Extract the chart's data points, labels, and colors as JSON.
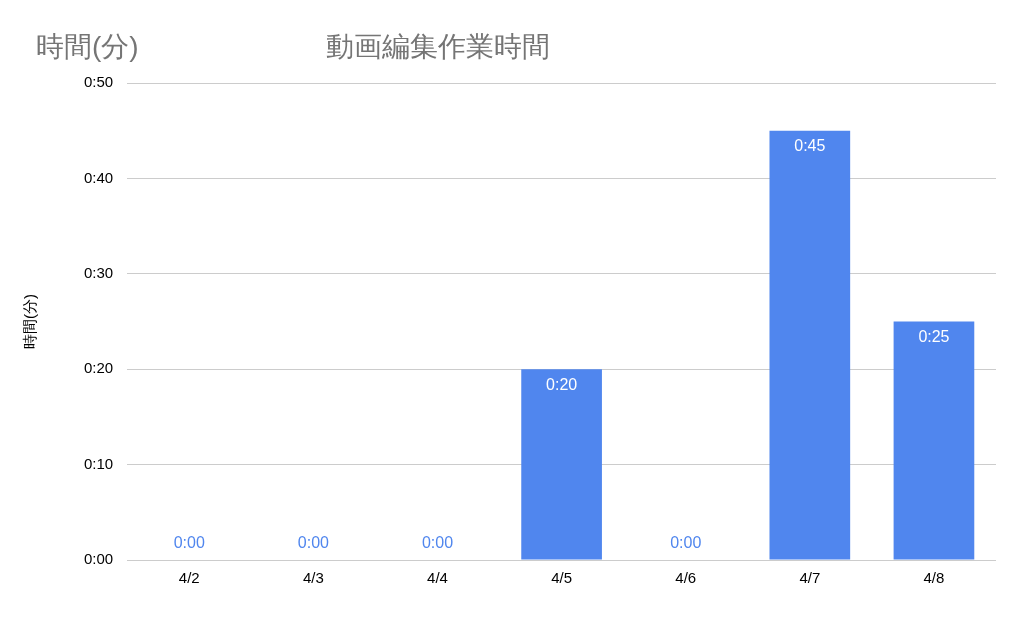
{
  "chart_data": {
    "type": "bar",
    "title": "動画編集作業時間",
    "ylabel": "時間(分)",
    "annotations": [
      "時間(分)"
    ],
    "categories": [
      "4/2",
      "4/3",
      "4/4",
      "4/5",
      "4/6",
      "4/7",
      "4/8"
    ],
    "values": [
      0,
      0,
      0,
      20,
      0,
      45,
      25
    ],
    "value_labels": [
      "0:00",
      "0:00",
      "0:00",
      "0:20",
      "0:00",
      "0:45",
      "0:25"
    ],
    "color": "#5086ee",
    "ylim": [
      0,
      50
    ],
    "yticks": [
      {
        "value": 0,
        "label": "0:00"
      },
      {
        "value": 10,
        "label": "0:10"
      },
      {
        "value": 20,
        "label": "0:20"
      },
      {
        "value": 30,
        "label": "0:30"
      },
      {
        "value": 40,
        "label": "0:40"
      },
      {
        "value": 50,
        "label": "0:50"
      }
    ],
    "grid": "y",
    "legend": false
  }
}
